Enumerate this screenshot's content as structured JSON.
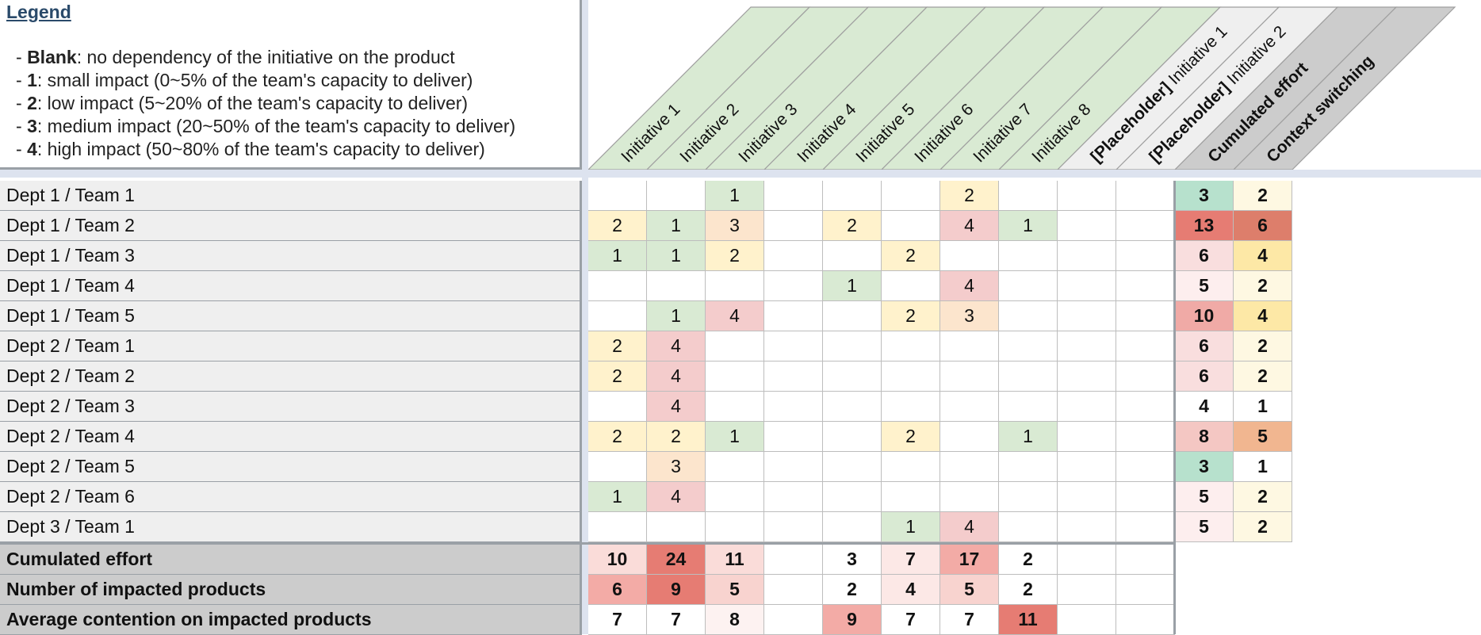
{
  "legend": {
    "title": "Legend",
    "items": [
      {
        "key": "Blank",
        "text": ": no dependency of the initiative on the product"
      },
      {
        "key": "1",
        "text": ": small impact (0~5% of the team's capacity to deliver)"
      },
      {
        "key": "2",
        "text": ": low impact (5~20% of the team's capacity to deliver)"
      },
      {
        "key": "3",
        "text": ": medium impact (20~50% of the team's capacity to deliver)"
      },
      {
        "key": "4",
        "text": ": high impact (50~80% of the team's capacity to deliver)"
      }
    ]
  },
  "columns": [
    {
      "prefix": "",
      "label": "Initiative 1",
      "bg": "#d9ead3",
      "bold": false
    },
    {
      "prefix": "",
      "label": "Initiative 2",
      "bg": "#d9ead3",
      "bold": false
    },
    {
      "prefix": "",
      "label": "Initiative 3",
      "bg": "#d9ead3",
      "bold": false
    },
    {
      "prefix": "",
      "label": "Initiative 4",
      "bg": "#d9ead3",
      "bold": false
    },
    {
      "prefix": "",
      "label": "Initiative 5",
      "bg": "#d9ead3",
      "bold": false
    },
    {
      "prefix": "",
      "label": "Initiative 6",
      "bg": "#d9ead3",
      "bold": false
    },
    {
      "prefix": "",
      "label": "Initiative 7",
      "bg": "#d9ead3",
      "bold": false
    },
    {
      "prefix": "",
      "label": "Initiative 8",
      "bg": "#d9ead3",
      "bold": false
    },
    {
      "prefix": "[Placeholder]",
      "label": " Initiative 1",
      "bg": "#efefef",
      "bold": false
    },
    {
      "prefix": "[Placeholder]",
      "label": " Initiative 2",
      "bg": "#efefef",
      "bold": false
    },
    {
      "prefix": "",
      "label": "Cumulated effort",
      "bg": "#cccccc",
      "bold": true
    },
    {
      "prefix": "",
      "label": "Context switching",
      "bg": "#cccccc",
      "bold": true
    }
  ],
  "rows": [
    {
      "label": "Dept 1 / Team 1",
      "cells": [
        "",
        "",
        "1",
        "",
        "",
        "",
        "2",
        "",
        "",
        ""
      ],
      "cumulated": "3",
      "switching": "2"
    },
    {
      "label": "Dept 1 / Team 2",
      "cells": [
        "2",
        "1",
        "3",
        "",
        "2",
        "",
        "4",
        "1",
        "",
        ""
      ],
      "cumulated": "13",
      "switching": "6"
    },
    {
      "label": "Dept 1 / Team 3",
      "cells": [
        "1",
        "1",
        "2",
        "",
        "",
        "2",
        "",
        "",
        "",
        ""
      ],
      "cumulated": "6",
      "switching": "4"
    },
    {
      "label": "Dept 1 / Team 4",
      "cells": [
        "",
        "",
        "",
        "",
        "1",
        "",
        "4",
        "",
        "",
        ""
      ],
      "cumulated": "5",
      "switching": "2"
    },
    {
      "label": "Dept 1 / Team 5",
      "cells": [
        "",
        "1",
        "4",
        "",
        "",
        "2",
        "3",
        "",
        "",
        ""
      ],
      "cumulated": "10",
      "switching": "4"
    },
    {
      "label": "Dept 2 / Team 1",
      "cells": [
        "2",
        "4",
        "",
        "",
        "",
        "",
        "",
        "",
        "",
        ""
      ],
      "cumulated": "6",
      "switching": "2"
    },
    {
      "label": "Dept 2 / Team 2",
      "cells": [
        "2",
        "4",
        "",
        "",
        "",
        "",
        "",
        "",
        "",
        ""
      ],
      "cumulated": "6",
      "switching": "2"
    },
    {
      "label": "Dept 2 / Team 3",
      "cells": [
        "",
        "4",
        "",
        "",
        "",
        "",
        "",
        "",
        "",
        ""
      ],
      "cumulated": "4",
      "switching": "1"
    },
    {
      "label": "Dept 2 / Team 4",
      "cells": [
        "2",
        "2",
        "1",
        "",
        "",
        "2",
        "",
        "1",
        "",
        ""
      ],
      "cumulated": "8",
      "switching": "5"
    },
    {
      "label": "Dept 2 / Team 5",
      "cells": [
        "",
        "3",
        "",
        "",
        "",
        "",
        "",
        "",
        "",
        ""
      ],
      "cumulated": "3",
      "switching": "1"
    },
    {
      "label": "Dept 2 / Team 6",
      "cells": [
        "1",
        "4",
        "",
        "",
        "",
        "",
        "",
        "",
        "",
        ""
      ],
      "cumulated": "5",
      "switching": "2"
    },
    {
      "label": "Dept 3 / Team 1",
      "cells": [
        "",
        "",
        "",
        "",
        "",
        "1",
        "4",
        "",
        "",
        ""
      ],
      "cumulated": "5",
      "switching": "2"
    }
  ],
  "summary": [
    {
      "label": "Cumulated effort",
      "cells": [
        "10",
        "24",
        "11",
        "",
        "3",
        "7",
        "17",
        "2",
        "",
        ""
      ]
    },
    {
      "label": "Number of impacted products",
      "cells": [
        "6",
        "9",
        "5",
        "",
        "2",
        "4",
        "5",
        "2",
        "",
        ""
      ]
    },
    {
      "label": "Average contention on impacted products",
      "cells": [
        "7",
        "7",
        "8",
        "",
        "9",
        "7",
        "7",
        "11",
        "",
        ""
      ]
    }
  ],
  "colors": {
    "impact": {
      "1": "#d9ead3",
      "2": "#fff2cc",
      "3": "#fce5cd",
      "4": "#f4cccc"
    },
    "cumulated": {
      "3": "#b7e1cd",
      "4": "#ffffff",
      "5": "#fdeeee",
      "6": "#f9dede",
      "8": "#f4c7c3",
      "10": "#f0aaa6",
      "13": "#e67c73"
    },
    "switching": {
      "1": "#ffffff",
      "2": "#fef8e2",
      "4": "#fde8a6",
      "5": "#f1b690",
      "6": "#dd7e6b"
    },
    "sum_effort": {
      "2": "#ffffff",
      "3": "#ffffff",
      "7": "#fce8e6",
      "10": "#fadcd9",
      "11": "#fadcd9",
      "17": "#f3aba6",
      "24": "#e67c73"
    },
    "sum_products": {
      "2": "#ffffff",
      "4": "#fce8e6",
      "5": "#f8d3cf",
      "6": "#f3aba6",
      "9": "#e67c73"
    },
    "sum_contention": {
      "7": "#ffffff",
      "8": "#fdf2f1",
      "9": "#f3aba6",
      "11": "#e67c73"
    }
  }
}
